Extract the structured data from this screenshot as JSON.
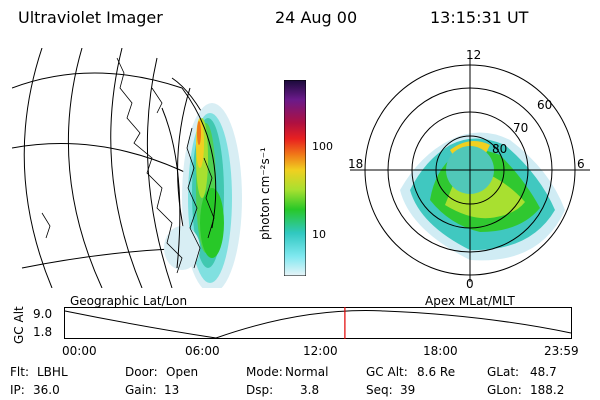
{
  "header": {
    "instrument": "Ultraviolet Imager",
    "date": "24 Aug 00",
    "time": "13:15:31 UT"
  },
  "colorbar": {
    "label": "photon cm⁻²s⁻¹",
    "tick_100": "100",
    "tick_10": "10",
    "scale": "log",
    "colors": [
      "#1a0a3a",
      "#6a1a8a",
      "#b01040",
      "#e82020",
      "#f07818",
      "#f0d020",
      "#a8e030",
      "#28c828",
      "#30c8c0",
      "#80e8f0",
      "#e8f4f8"
    ]
  },
  "panels": {
    "left_label": "Geographic Lat/Lon",
    "right_label": "Apex MLat/MLT",
    "polar": {
      "mlt_12": "12",
      "mlt_18": "18",
      "mlt_6": "6",
      "mlt_0": "0",
      "lat_60": "60",
      "lat_70": "70",
      "lat_80": "80"
    }
  },
  "orbit": {
    "axis_label": "GC Alt",
    "y_top": "9.0",
    "y_bottom": "1.8",
    "x_ticks": [
      "00:00",
      "06:00",
      "12:00",
      "18:00",
      "23:59"
    ],
    "current_time_hours": 13.26
  },
  "footer": {
    "row1": [
      {
        "label": "Flt:",
        "value": "LBHL"
      },
      {
        "label": "Door:",
        "value": "Open"
      },
      {
        "label": "Mode:",
        "value": "Normal"
      },
      {
        "label": "GC Alt:",
        "value": "8.6 Re"
      },
      {
        "label": "GLat:",
        "value": "48.7"
      }
    ],
    "row2": [
      {
        "label": "IP:",
        "value": "36.0"
      },
      {
        "label": "Gain:",
        "value": "13"
      },
      {
        "label": "Dsp:",
        "value": "3.8"
      },
      {
        "label": "Seq:",
        "value": "39"
      },
      {
        "label": "GLon:",
        "value": "188.2"
      }
    ]
  }
}
